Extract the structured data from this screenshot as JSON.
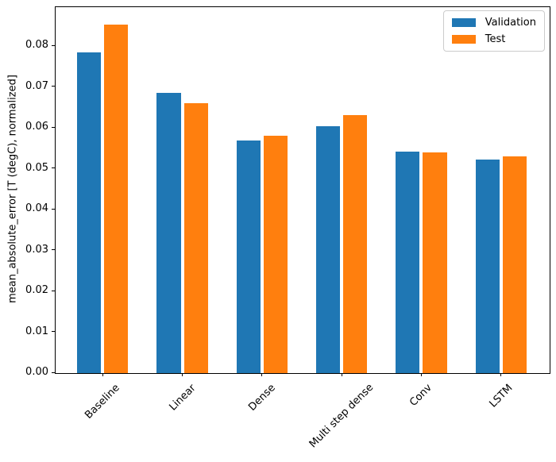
{
  "chart_data": {
    "type": "bar",
    "title": "",
    "categories": [
      "Baseline",
      "Linear",
      "Dense",
      "Multi step dense",
      "Conv",
      "LSTM"
    ],
    "series": [
      {
        "name": "Validation",
        "color": "#1f77b4",
        "values": [
          0.0785,
          0.0686,
          0.057,
          0.0604,
          0.0543,
          0.0522
        ]
      },
      {
        "name": "Test",
        "color": "#ff7f0e",
        "values": [
          0.0853,
          0.0661,
          0.0581,
          0.0631,
          0.0541,
          0.0531
        ]
      }
    ],
    "xlabel": "",
    "ylabel": "mean_absolute_error [T (degC), normalized]",
    "yticks": [
      0.0,
      0.01,
      0.02,
      0.03,
      0.04,
      0.05,
      0.06,
      0.07,
      0.08
    ],
    "ylim": [
      0,
      0.0896
    ],
    "x_units_range": [
      -0.6,
      5.6
    ],
    "bar_width_units": 0.3,
    "bar_offset_units": 0.17,
    "x_tick_rotation_deg": 45,
    "grid": false,
    "legend_position": "upper right",
    "axis_color": "#000000",
    "legend_border_color": "#cccccc"
  }
}
